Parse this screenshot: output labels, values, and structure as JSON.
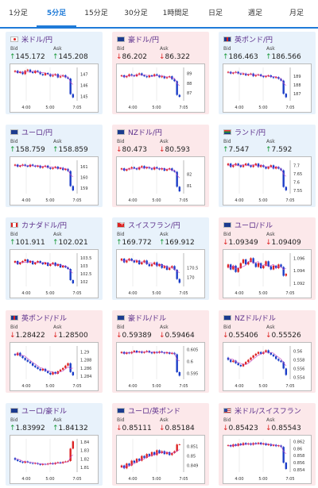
{
  "tabs": [
    {
      "label": "1分足",
      "active": false
    },
    {
      "label": "5分足",
      "active": true
    },
    {
      "label": "15分足",
      "active": false
    },
    {
      "label": "30分足",
      "active": false
    },
    {
      "label": "1時間足",
      "active": false
    },
    {
      "label": "日足",
      "active": false
    },
    {
      "label": "週足",
      "active": false
    },
    {
      "label": "月足",
      "active": false
    }
  ],
  "colors": {
    "up_bg": "#e8f2fb",
    "down_bg": "#fce8ea",
    "pair_text": "#5a2d8a",
    "candle_up": "#d22",
    "candle_down": "#1c3ec8",
    "ma_line": "#c040c0",
    "accent": "#1f7bd8"
  },
  "bid_label": "Bid",
  "ask_label": "Ask",
  "pairs": [
    {
      "name": "米ドル/円",
      "flag": "jp",
      "trend": "up",
      "bid": "145.172",
      "ask": "145.208",
      "chart_data": {
        "type": "candlestick",
        "x_ticks": [
          "4:00",
          "5:00",
          "7:05"
        ],
        "y_ticks": [
          "147",
          "146",
          "145"
        ],
        "ylim": [
          144.6,
          147.6
        ],
        "path": [
          147.2,
          147.3,
          147.1,
          147.2,
          147.0,
          147.3,
          147.4,
          147.2,
          147.1,
          147.3,
          147.2,
          147.0,
          146.9,
          147.1,
          147.0,
          146.8,
          146.9,
          147.0,
          146.7,
          146.8,
          146.9,
          146.7,
          146.6,
          145.2,
          144.9
        ]
      }
    },
    {
      "name": "豪ドル/円",
      "flag": "au",
      "trend": "down",
      "bid": "86.202",
      "ask": "86.322",
      "chart_data": {
        "type": "candlestick",
        "x_ticks": [
          "4:00",
          "5:00",
          "7:05"
        ],
        "y_ticks": [
          "89",
          "88",
          "87"
        ],
        "ylim": [
          86.2,
          89.6
        ],
        "path": [
          88.7,
          88.8,
          88.6,
          88.7,
          88.9,
          88.8,
          88.7,
          88.9,
          89.0,
          88.8,
          88.7,
          88.6,
          88.8,
          88.7,
          88.9,
          88.8,
          88.6,
          88.7,
          88.5,
          88.6,
          88.7,
          88.4,
          88.2,
          86.8,
          86.6
        ]
      }
    },
    {
      "name": "英ポンド/円",
      "flag": "gb",
      "trend": "up",
      "bid": "186.463",
      "ask": "186.566",
      "chart_data": {
        "type": "candlestick",
        "x_ticks": [
          "4:00",
          "5:00",
          "7:05"
        ],
        "y_ticks": [
          "189",
          "188",
          "187"
        ],
        "ylim": [
          186.2,
          190.0
        ],
        "path": [
          189.4,
          189.5,
          189.3,
          189.4,
          189.5,
          189.3,
          189.2,
          189.3,
          189.1,
          189.2,
          189.3,
          189.0,
          189.1,
          189.2,
          189.0,
          188.9,
          189.0,
          189.1,
          188.9,
          188.8,
          188.9,
          188.7,
          188.5,
          187.0,
          186.6
        ]
      }
    },
    {
      "name": "ユーロ/円",
      "flag": "eu",
      "trend": "up",
      "bid": "158.759",
      "ask": "158.859",
      "chart_data": {
        "type": "candlestick",
        "x_ticks": [
          "4:00",
          "5:00",
          "7:05"
        ],
        "y_ticks": [
          "161",
          "160",
          "159"
        ],
        "ylim": [
          158.5,
          161.6
        ],
        "path": [
          161.1,
          161.2,
          161.0,
          161.1,
          161.2,
          161.1,
          161.0,
          161.2,
          161.1,
          161.0,
          161.1,
          160.9,
          161.0,
          161.1,
          160.9,
          160.8,
          160.9,
          161.0,
          160.8,
          160.9,
          160.7,
          160.8,
          160.6,
          159.2,
          158.8
        ]
      }
    },
    {
      "name": "NZドル/円",
      "flag": "nz",
      "trend": "down",
      "bid": "80.473",
      "ask": "80.593",
      "chart_data": {
        "type": "candlestick",
        "x_ticks": [
          "4:00",
          "5:00",
          "7:05"
        ],
        "y_ticks": [
          "82",
          "81"
        ],
        "ylim": [
          80.3,
          83.2
        ],
        "path": [
          82.4,
          82.5,
          82.3,
          82.4,
          82.5,
          82.6,
          82.5,
          82.4,
          82.6,
          82.7,
          82.5,
          82.6,
          82.5,
          82.4,
          82.6,
          82.5,
          82.4,
          82.5,
          82.3,
          82.4,
          82.5,
          82.3,
          82.2,
          80.9,
          80.5
        ]
      }
    },
    {
      "name": "ランド/円",
      "flag": "za",
      "trend": "up",
      "bid": "7.547",
      "ask": "7.592",
      "chart_data": {
        "type": "candlestick",
        "x_ticks": [
          "4:00",
          "5:00",
          "7:05"
        ],
        "y_ticks": [
          "7.7",
          "7.65",
          "7.6",
          "7.55"
        ],
        "ylim": [
          7.53,
          7.73
        ],
        "path": [
          7.7,
          7.71,
          7.69,
          7.7,
          7.71,
          7.7,
          7.69,
          7.7,
          7.71,
          7.7,
          7.69,
          7.7,
          7.71,
          7.69,
          7.7,
          7.69,
          7.68,
          7.69,
          7.7,
          7.68,
          7.69,
          7.68,
          7.67,
          7.57,
          7.55
        ]
      }
    },
    {
      "name": "カナダドル/円",
      "flag": "ca",
      "trend": "up",
      "bid": "101.911",
      "ask": "102.021",
      "chart_data": {
        "type": "candlestick",
        "x_ticks": [
          "4:00",
          "5:00",
          "7:05"
        ],
        "y_ticks": [
          "103.5",
          "103",
          "102.5",
          "102"
        ],
        "ylim": [
          101.7,
          103.8
        ],
        "path": [
          103.2,
          103.3,
          103.1,
          103.2,
          103.3,
          103.4,
          103.2,
          103.3,
          103.1,
          103.2,
          103.3,
          103.2,
          103.1,
          103.2,
          103.0,
          103.1,
          103.2,
          103.0,
          103.1,
          102.9,
          103.0,
          102.9,
          102.8,
          102.1,
          101.9
        ]
      }
    },
    {
      "name": "スイスフラン/円",
      "flag": "ch",
      "trend": "up",
      "bid": "169.772",
      "ask": "169.912",
      "chart_data": {
        "type": "candlestick",
        "x_ticks": [
          "4:00",
          "5:00",
          "7:05"
        ],
        "y_ticks": [
          "170.5",
          "170"
        ],
        "ylim": [
          169.5,
          171.3
        ],
        "path": [
          170.9,
          171.0,
          170.8,
          170.9,
          171.0,
          170.9,
          170.8,
          170.9,
          170.7,
          170.8,
          170.9,
          170.7,
          170.6,
          170.7,
          170.8,
          170.6,
          170.7,
          170.5,
          170.6,
          170.4,
          170.5,
          170.6,
          170.4,
          169.9,
          169.7
        ]
      }
    },
    {
      "name": "ユーロ/ドル",
      "flag": "eu",
      "trend": "down",
      "bid": "1.09349",
      "ask": "1.09409",
      "chart_data": {
        "type": "candlestick",
        "x_ticks": [
          "4:00",
          "5:00",
          "7:05"
        ],
        "y_ticks": [
          "1.096",
          "1.094",
          "1.092"
        ],
        "ylim": [
          1.0915,
          1.0968
        ],
        "path": [
          1.0945,
          1.095,
          1.0942,
          1.0948,
          1.0938,
          1.0944,
          1.0952,
          1.0958,
          1.095,
          1.0954,
          1.096,
          1.0952,
          1.0946,
          1.0952,
          1.0944,
          1.0948,
          1.0955,
          1.0947,
          1.0942,
          1.0948,
          1.0944,
          1.095,
          1.0946,
          1.0932,
          1.0935
        ]
      }
    },
    {
      "name": "英ポンド/ドル",
      "flag": "gb",
      "trend": "down",
      "bid": "1.28422",
      "ask": "1.28500",
      "chart_data": {
        "type": "candlestick",
        "x_ticks": [
          "4:00",
          "5:00",
          "7:05"
        ],
        "y_ticks": [
          "1.29",
          "1.288",
          "1.286",
          "1.284"
        ],
        "ylim": [
          1.2832,
          1.2915
        ],
        "path": [
          1.2895,
          1.2892,
          1.2898,
          1.289,
          1.2885,
          1.288,
          1.2876,
          1.2872,
          1.2866,
          1.2862,
          1.2858,
          1.2854,
          1.2858,
          1.2852,
          1.2848,
          1.2844,
          1.285,
          1.2846,
          1.2852,
          1.2856,
          1.286,
          1.2866,
          1.2872,
          1.285,
          1.2842
        ]
      }
    },
    {
      "name": "豪ドル/ドル",
      "flag": "au",
      "trend": "down",
      "bid": "0.59389",
      "ask": "0.59464",
      "chart_data": {
        "type": "candlestick",
        "x_ticks": [
          "4:00",
          "5:00",
          "7:05"
        ],
        "y_ticks": [
          "0.605",
          "0.6",
          "0.595"
        ],
        "ylim": [
          0.5925,
          0.6065
        ],
        "path": [
          0.6035,
          0.604,
          0.6032,
          0.6038,
          0.6034,
          0.604,
          0.6045,
          0.6038,
          0.6042,
          0.6036,
          0.604,
          0.6044,
          0.6038,
          0.6034,
          0.604,
          0.6036,
          0.6042,
          0.6038,
          0.6034,
          0.6038,
          0.6032,
          0.6036,
          0.603,
          0.5955,
          0.594
        ]
      }
    },
    {
      "name": "NZドル/ドル",
      "flag": "nz",
      "trend": "down",
      "bid": "0.55406",
      "ask": "0.55526",
      "chart_data": {
        "type": "candlestick",
        "x_ticks": [
          "4:00",
          "5:00",
          "7:05"
        ],
        "y_ticks": [
          "0.56",
          "0.558",
          "0.556",
          "0.554"
        ],
        "ylim": [
          0.5535,
          0.5612
        ],
        "path": [
          0.5585,
          0.558,
          0.5575,
          0.5578,
          0.5572,
          0.5568,
          0.5565,
          0.557,
          0.5575,
          0.558,
          0.5585,
          0.559,
          0.5594,
          0.5598,
          0.5594,
          0.5598,
          0.5602,
          0.5596,
          0.5592,
          0.5588,
          0.5582,
          0.5578,
          0.5575,
          0.556,
          0.5545
        ]
      }
    },
    {
      "name": "ユーロ/豪ドル",
      "flag": "eu",
      "trend": "up",
      "bid": "1.83992",
      "ask": "1.84132",
      "chart_data": {
        "type": "candlestick",
        "x_ticks": [
          "4:00",
          "5:00",
          "7:05"
        ],
        "y_ticks": [
          "1.84",
          "1.83",
          "1.82",
          "1.81"
        ],
        "ylim": [
          1.8045,
          1.8435
        ],
        "path": [
          1.821,
          1.819,
          1.8175,
          1.8165,
          1.8155,
          1.817,
          1.816,
          1.815,
          1.8145,
          1.815,
          1.814,
          1.813,
          1.814,
          1.8135,
          1.8145,
          1.815,
          1.814,
          1.8155,
          1.816,
          1.815,
          1.8165,
          1.817,
          1.8175,
          1.832,
          1.8405
        ]
      }
    },
    {
      "name": "ユーロ/英ポンド",
      "flag": "eu",
      "trend": "down",
      "bid": "0.85111",
      "ask": "0.85184",
      "chart_data": {
        "type": "candlestick",
        "x_ticks": [
          "4:00",
          "5:00",
          "7:05"
        ],
        "y_ticks": [
          "0.851",
          "0.85",
          "0.849"
        ],
        "ylim": [
          0.8483,
          0.8518
        ],
        "path": [
          0.8488,
          0.849,
          0.8487,
          0.8492,
          0.849,
          0.8495,
          0.8493,
          0.8497,
          0.8495,
          0.85,
          0.8498,
          0.8502,
          0.85,
          0.8504,
          0.8501,
          0.8506,
          0.8503,
          0.8505,
          0.8502,
          0.8504,
          0.8501,
          0.8503,
          0.8505,
          0.8512,
          0.8512
        ]
      }
    },
    {
      "name": "米ドル/スイスフラン",
      "flag": "us",
      "trend": "down",
      "bid": "0.85423",
      "ask": "0.85543",
      "chart_data": {
        "type": "candlestick",
        "x_ticks": [
          "4:00",
          "5:00",
          "7:05"
        ],
        "y_ticks": [
          "0.862",
          "0.86",
          "0.858",
          "0.856",
          "0.854"
        ],
        "ylim": [
          0.8533,
          0.8628
        ],
        "path": [
          0.8608,
          0.861,
          0.8606,
          0.8612,
          0.8608,
          0.8614,
          0.861,
          0.8616,
          0.8612,
          0.8615,
          0.8611,
          0.8616,
          0.8613,
          0.8617,
          0.8612,
          0.8615,
          0.861,
          0.8613,
          0.8608,
          0.8611,
          0.8607,
          0.8609,
          0.8605,
          0.856,
          0.8542
        ]
      }
    }
  ]
}
